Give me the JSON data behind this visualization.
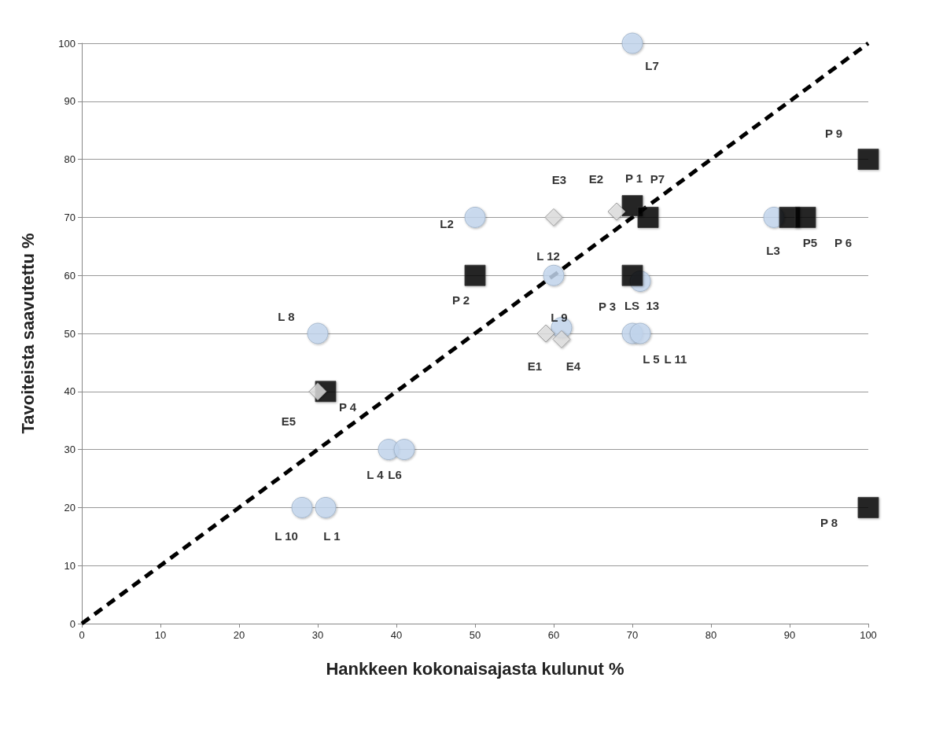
{
  "chart_data": {
    "type": "scatter",
    "xlabel": "Hankkeen kokonaisajasta kulunut %",
    "ylabel": "Tavoiteista saavutettu %",
    "xlim": [
      0,
      100
    ],
    "xticks": [
      0,
      10,
      20,
      30,
      40,
      50,
      60,
      70,
      80,
      90,
      100
    ],
    "ylim": [
      0,
      100
    ],
    "yticks": [
      0,
      10,
      20,
      30,
      40,
      50,
      60,
      70,
      80,
      90,
      100
    ],
    "grid": "y",
    "series": [
      {
        "marker": "circle",
        "color": "#c6d9f1",
        "x": [
          70,
          50,
          60,
          71,
          61,
          70,
          71,
          88,
          30,
          39,
          41,
          28,
          31
        ],
        "values": [
          100,
          70,
          60,
          59,
          51,
          50,
          50,
          70,
          50,
          30,
          30,
          20,
          20
        ]
      },
      {
        "marker": "square",
        "color": "#000000",
        "x": [
          70,
          72,
          100,
          90,
          92,
          50,
          70,
          31,
          100
        ],
        "values": [
          72,
          70,
          80,
          70,
          70,
          60,
          60,
          40,
          20
        ]
      },
      {
        "marker": "diamond",
        "color": "#e0e0e0",
        "x": [
          60,
          68,
          59,
          61,
          30
        ],
        "values": [
          70,
          71,
          50,
          49,
          40
        ]
      },
      {
        "type": "line",
        "marker": "none",
        "line_style": "dashed",
        "color": "#000000",
        "x": [
          0,
          100
        ],
        "values": [
          0,
          100
        ]
      }
    ],
    "annotations": [
      {
        "text": "L7",
        "x": 70,
        "y": 100
      },
      {
        "text": "P 9",
        "x": 100,
        "y": 80
      },
      {
        "text": "P 1",
        "x": 70,
        "y": 72
      },
      {
        "text": "P7",
        "x": 72,
        "y": 70
      },
      {
        "text": "E3",
        "x": 60,
        "y": 70
      },
      {
        "text": "E2",
        "x": 68,
        "y": 71
      },
      {
        "text": "L2",
        "x": 50,
        "y": 70
      },
      {
        "text": "L3",
        "x": 88,
        "y": 70
      },
      {
        "text": "P5",
        "x": 90,
        "y": 70
      },
      {
        "text": "P 6",
        "x": 92,
        "y": 70
      },
      {
        "text": "L 12",
        "x": 60,
        "y": 60
      },
      {
        "text": "P 2",
        "x": 50,
        "y": 60
      },
      {
        "text": "P 3",
        "x": 70,
        "y": 60
      },
      {
        "text": "LS  13",
        "x": 71,
        "y": 59
      },
      {
        "text": "L 8",
        "x": 30,
        "y": 50
      },
      {
        "text": "L 9",
        "x": 61,
        "y": 51
      },
      {
        "text": "E1",
        "x": 59,
        "y": 50
      },
      {
        "text": "E4",
        "x": 61,
        "y": 49
      },
      {
        "text": "L 5",
        "x": 70,
        "y": 50
      },
      {
        "text": "L 11",
        "x": 71,
        "y": 50
      },
      {
        "text": "P 4",
        "x": 31,
        "y": 40
      },
      {
        "text": "E5",
        "x": 30,
        "y": 40
      },
      {
        "text": "L 4",
        "x": 39,
        "y": 30
      },
      {
        "text": "L6",
        "x": 41,
        "y": 30
      },
      {
        "text": "P 8",
        "x": 100,
        "y": 20
      },
      {
        "text": "L 10",
        "x": 28,
        "y": 20
      },
      {
        "text": "L 1",
        "x": 31,
        "y": 20
      }
    ]
  }
}
